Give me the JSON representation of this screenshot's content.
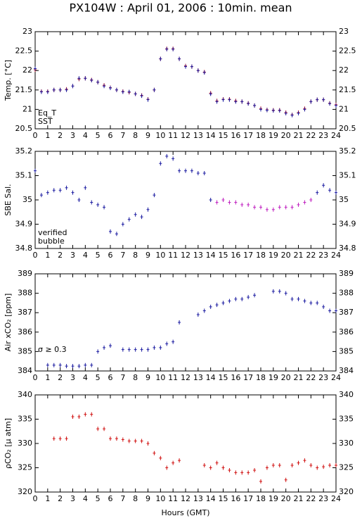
{
  "title": "PX104W : April 01, 2006 : 10min. mean",
  "xlabel": "Hours (GMT)",
  "chart_data": [
    {
      "type": "scatter",
      "ylabel": "Temp. [°C]",
      "x": [
        0,
        0.5,
        1,
        1.5,
        2,
        2.5,
        3,
        3.5,
        4,
        4.5,
        5,
        5.5,
        6,
        6.5,
        7,
        7.5,
        8,
        8.5,
        9,
        9.5,
        10,
        10.5,
        11,
        11.5,
        12,
        12.5,
        13,
        13.5,
        14,
        14.5,
        15,
        15.5,
        16,
        16.5,
        17,
        17.5,
        18,
        18.5,
        19,
        19.5,
        20,
        20.5,
        21,
        21.5,
        22,
        22.5,
        23,
        23.5,
        24
      ],
      "xlim": [
        0,
        24
      ],
      "xticks": [
        0,
        1,
        2,
        3,
        4,
        5,
        6,
        7,
        8,
        9,
        10,
        11,
        12,
        13,
        14,
        15,
        16,
        17,
        18,
        19,
        20,
        21,
        22,
        23,
        24
      ],
      "ylim": [
        20.5,
        23
      ],
      "yticks": [
        20.5,
        21,
        21.5,
        22,
        22.5,
        23
      ],
      "legend": "lower left",
      "series": [
        {
          "name": "Eq_T",
          "color": "#d01010",
          "values": [
            22.02,
            21.46,
            21.46,
            21.5,
            21.5,
            21.52,
            21.6,
            21.78,
            21.8,
            21.76,
            21.7,
            21.62,
            21.56,
            21.5,
            21.46,
            21.44,
            21.4,
            21.36,
            21.26,
            21.5,
            22.3,
            22.56,
            22.56,
            22.3,
            22.12,
            22.1,
            22.0,
            21.96,
            21.42,
            21.22,
            21.26,
            21.26,
            21.22,
            21.2,
            21.16,
            21.1,
            21.02,
            20.99,
            20.98,
            20.98,
            20.92,
            20.86,
            20.92,
            21.02,
            21.2,
            21.25,
            21.25,
            21.16,
            21.12
          ]
        },
        {
          "name": "SST",
          "color": "#1a1aa0",
          "values": [
            22.05,
            21.45,
            21.45,
            21.5,
            21.5,
            21.5,
            21.6,
            21.8,
            21.8,
            21.75,
            21.7,
            21.6,
            21.55,
            21.5,
            21.45,
            21.45,
            21.4,
            21.35,
            21.25,
            21.5,
            22.3,
            22.55,
            22.55,
            22.3,
            22.1,
            22.1,
            22.0,
            21.95,
            21.4,
            21.2,
            21.25,
            21.25,
            21.2,
            21.2,
            21.15,
            21.1,
            21.0,
            20.98,
            20.97,
            20.97,
            20.9,
            20.85,
            20.9,
            21.0,
            21.2,
            21.25,
            21.25,
            21.15,
            21.1
          ]
        }
      ]
    },
    {
      "type": "scatter",
      "ylabel": "SBE Sal.",
      "x": [
        0,
        0.5,
        1,
        1.5,
        2,
        2.5,
        3,
        3.5,
        4,
        4.5,
        5,
        5.5,
        6,
        6.5,
        7,
        7.5,
        8,
        8.5,
        9,
        9.5,
        10,
        10.5,
        11,
        11.5,
        12,
        12.5,
        13,
        13.5,
        14,
        14.5,
        15,
        15.5,
        16,
        16.5,
        17,
        17.5,
        18,
        18.5,
        19,
        19.5,
        20,
        20.5,
        21,
        21.5,
        22,
        22.5,
        23,
        23.5,
        24
      ],
      "xlim": [
        0,
        24
      ],
      "xticks": [
        0,
        1,
        2,
        3,
        4,
        5,
        6,
        7,
        8,
        9,
        10,
        11,
        12,
        13,
        14,
        15,
        16,
        17,
        18,
        19,
        20,
        21,
        22,
        23,
        24
      ],
      "ylim": [
        34.8,
        35.2
      ],
      "yticks": [
        34.8,
        34.9,
        35,
        35.1,
        35.2
      ],
      "legend": "lower left",
      "series": [
        {
          "name": "verified",
          "color": "#1a1aa0",
          "values": [
            35.12,
            35.02,
            35.03,
            35.04,
            35.04,
            35.05,
            35.03,
            35.0,
            35.05,
            34.99,
            34.98,
            34.97,
            34.87,
            34.86,
            34.9,
            34.92,
            34.94,
            34.93,
            34.96,
            35.02,
            35.15,
            35.18,
            35.17,
            35.12,
            35.12,
            35.12,
            35.11,
            35.11,
            35.0,
            null,
            null,
            null,
            null,
            null,
            null,
            null,
            null,
            null,
            null,
            null,
            null,
            null,
            null,
            null,
            null,
            35.03,
            35.06,
            35.04,
            35.03
          ]
        },
        {
          "name": "bubble",
          "color": "#c020c0",
          "values": [
            null,
            null,
            null,
            null,
            null,
            null,
            null,
            null,
            null,
            null,
            null,
            null,
            null,
            null,
            null,
            null,
            null,
            null,
            null,
            null,
            null,
            null,
            null,
            null,
            null,
            null,
            null,
            null,
            null,
            34.99,
            35.0,
            34.99,
            34.99,
            34.98,
            34.98,
            34.97,
            34.97,
            34.96,
            34.96,
            34.97,
            34.97,
            34.97,
            34.98,
            34.99,
            35.0,
            null,
            null,
            null,
            null
          ]
        }
      ]
    },
    {
      "type": "scatter",
      "ylabel": "Air xCO₂ [ppm]",
      "x": [
        0,
        0.5,
        1,
        1.5,
        2,
        2.5,
        3,
        3.5,
        4,
        4.5,
        5,
        5.5,
        6,
        6.5,
        7,
        7.5,
        8,
        8.5,
        9,
        9.5,
        10,
        10.5,
        11,
        11.5,
        12,
        12.5,
        13,
        13.5,
        14,
        14.5,
        15,
        15.5,
        16,
        16.5,
        17,
        17.5,
        18,
        18.5,
        19,
        19.5,
        20,
        20.5,
        21,
        21.5,
        22,
        22.5,
        23,
        23.5,
        24
      ],
      "xlim": [
        0,
        24
      ],
      "xticks": [
        0,
        1,
        2,
        3,
        4,
        5,
        6,
        7,
        8,
        9,
        10,
        11,
        12,
        13,
        14,
        15,
        16,
        17,
        18,
        19,
        20,
        21,
        22,
        23,
        24
      ],
      "ylim": [
        384,
        389
      ],
      "yticks": [
        384,
        385,
        386,
        387,
        388,
        389
      ],
      "annotation": "σ ≥ 0.3",
      "annotation_color": "#c020c0",
      "series": [
        {
          "color": "#1a1aa0",
          "values": [
            null,
            null,
            384.3,
            384.3,
            384.3,
            384.25,
            384.25,
            384.25,
            384.3,
            384.3,
            385.0,
            385.2,
            385.3,
            null,
            385.1,
            385.1,
            385.1,
            385.1,
            385.1,
            385.2,
            385.2,
            385.4,
            385.5,
            386.5,
            null,
            null,
            386.9,
            387.1,
            387.3,
            387.4,
            387.5,
            387.6,
            387.7,
            387.7,
            387.8,
            387.9,
            null,
            null,
            388.1,
            388.1,
            388.0,
            387.7,
            387.7,
            387.6,
            387.5,
            387.5,
            387.3,
            387.1,
            387.1
          ]
        }
      ]
    },
    {
      "type": "scatter",
      "ylabel": "ρCO₂ [µ atm]",
      "x": [
        0,
        0.5,
        1,
        1.5,
        2,
        2.5,
        3,
        3.5,
        4,
        4.5,
        5,
        5.5,
        6,
        6.5,
        7,
        7.5,
        8,
        8.5,
        9,
        9.5,
        10,
        10.5,
        11,
        11.5,
        12,
        12.5,
        13,
        13.5,
        14,
        14.5,
        15,
        15.5,
        16,
        16.5,
        17,
        17.5,
        18,
        18.5,
        19,
        19.5,
        20,
        20.5,
        21,
        21.5,
        22,
        22.5,
        23,
        23.5,
        24
      ],
      "xlim": [
        0,
        24
      ],
      "xticks": [
        0,
        1,
        2,
        3,
        4,
        5,
        6,
        7,
        8,
        9,
        10,
        11,
        12,
        13,
        14,
        15,
        16,
        17,
        18,
        19,
        20,
        21,
        22,
        23,
        24
      ],
      "ylim": [
        320,
        340
      ],
      "yticks": [
        320,
        325,
        330,
        335,
        340
      ],
      "series": [
        {
          "color": "#d01010",
          "values": [
            null,
            null,
            null,
            331,
            331,
            331,
            335.5,
            335.5,
            336,
            336,
            333,
            333,
            331,
            331,
            330.8,
            330.5,
            330.5,
            330.5,
            330,
            328,
            327,
            325,
            326,
            326.5,
            null,
            null,
            null,
            325.5,
            325,
            326,
            325,
            324.5,
            324,
            324,
            324,
            324.5,
            322.2,
            325,
            325.5,
            325.5,
            322.5,
            325.5,
            326,
            326.5,
            325.5,
            325,
            325.2,
            325.5,
            325.5
          ]
        }
      ]
    }
  ]
}
